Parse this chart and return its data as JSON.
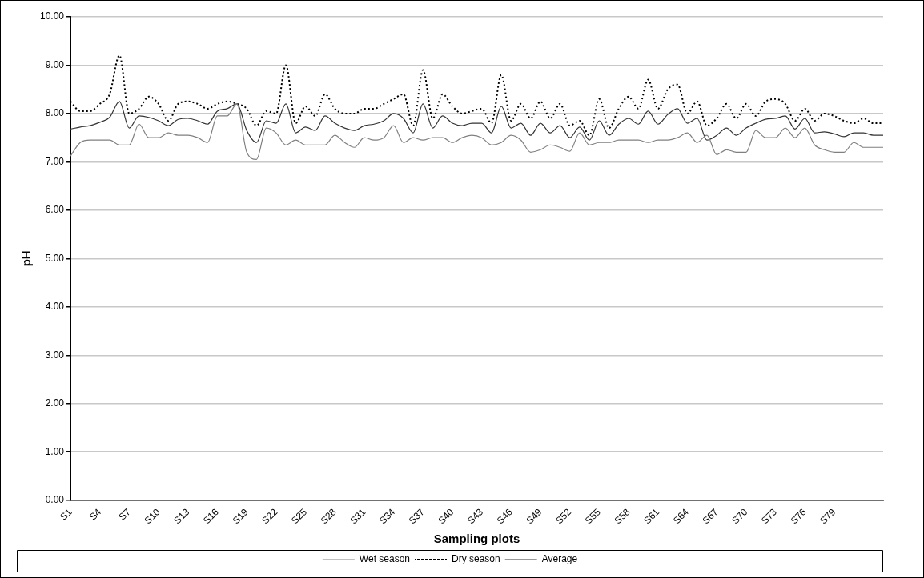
{
  "chart_data": {
    "type": "line",
    "xlabel": "Sampling plots",
    "ylabel": "pH",
    "categories": [
      "S1",
      null,
      null,
      "S4",
      null,
      null,
      "S7",
      null,
      null,
      "S10",
      null,
      null,
      "S13",
      null,
      null,
      "S16",
      null,
      null,
      "S19",
      null,
      null,
      "S22",
      null,
      null,
      "S25",
      null,
      null,
      "S28",
      null,
      null,
      "S31",
      null,
      null,
      "S34",
      null,
      null,
      "S37",
      null,
      null,
      "S40",
      null,
      null,
      "S43",
      null,
      null,
      "S46",
      null,
      null,
      "S49",
      null,
      null,
      "S52",
      null,
      null,
      "S55",
      null,
      null,
      "S58",
      null,
      null,
      "S61",
      null,
      null,
      "S64",
      null,
      null,
      "S67",
      null,
      null,
      "S70",
      null,
      null,
      "S73",
      null,
      null,
      "S76",
      null,
      null,
      "S79",
      null,
      null,
      null,
      null,
      null
    ],
    "series": [
      {
        "name": "Wet season",
        "color": "#808080",
        "line_style": "solid",
        "values": [
          7.12,
          7.4,
          7.45,
          7.45,
          7.45,
          7.35,
          7.35,
          7.78,
          7.5,
          7.5,
          7.6,
          7.55,
          7.55,
          7.5,
          7.4,
          7.95,
          7.95,
          8.2,
          7.2,
          7.05,
          7.7,
          7.6,
          7.35,
          7.45,
          7.35,
          7.35,
          7.35,
          7.55,
          7.4,
          7.3,
          7.5,
          7.45,
          7.5,
          7.75,
          7.4,
          7.5,
          7.45,
          7.5,
          7.5,
          7.4,
          7.5,
          7.55,
          7.5,
          7.35,
          7.4,
          7.55,
          7.45,
          7.2,
          7.25,
          7.35,
          7.3,
          7.22,
          7.6,
          7.35,
          7.4,
          7.4,
          7.45,
          7.45,
          7.45,
          7.4,
          7.45,
          7.45,
          7.5,
          7.6,
          7.4,
          7.55,
          7.15,
          7.25,
          7.2,
          7.2,
          7.65,
          7.5,
          7.5,
          7.7,
          7.5,
          7.7,
          7.35,
          7.25,
          7.2,
          7.2,
          7.4,
          7.3,
          7.3,
          7.3
        ]
      },
      {
        "name": "Dry season",
        "color": "#000000",
        "line_style": "dotted",
        "values": [
          8.25,
          8.05,
          8.05,
          8.2,
          8.4,
          9.2,
          8.0,
          8.1,
          8.35,
          8.2,
          7.85,
          8.2,
          8.25,
          8.2,
          8.1,
          8.2,
          8.25,
          8.2,
          8.1,
          7.75,
          8.05,
          8.0,
          9.0,
          7.8,
          8.15,
          7.95,
          8.4,
          8.1,
          8.0,
          8.0,
          8.1,
          8.1,
          8.2,
          8.3,
          8.4,
          7.75,
          8.9,
          7.9,
          8.4,
          8.15,
          8.0,
          8.05,
          8.1,
          7.8,
          8.8,
          7.85,
          8.2,
          7.9,
          8.25,
          7.9,
          8.2,
          7.75,
          7.85,
          7.55,
          8.3,
          7.7,
          8.1,
          8.35,
          8.1,
          8.7,
          8.1,
          8.5,
          8.6,
          8.0,
          8.25,
          7.75,
          7.9,
          8.2,
          7.9,
          8.2,
          7.95,
          8.25,
          8.3,
          8.2,
          7.85,
          8.1,
          7.85,
          8.0,
          7.95,
          7.85,
          7.8,
          7.9,
          7.8,
          7.8
        ]
      },
      {
        "name": "Average",
        "color": "#333333",
        "line_style": "solid",
        "values": [
          7.68,
          7.72,
          7.75,
          7.82,
          7.92,
          8.25,
          7.7,
          7.95,
          7.92,
          7.85,
          7.75,
          7.88,
          7.9,
          7.85,
          7.78,
          8.05,
          8.1,
          8.2,
          7.65,
          7.4,
          7.85,
          7.8,
          8.2,
          7.6,
          7.72,
          7.65,
          7.95,
          7.8,
          7.7,
          7.65,
          7.75,
          7.78,
          7.85,
          8.0,
          7.9,
          7.6,
          8.2,
          7.7,
          7.95,
          7.8,
          7.75,
          7.8,
          7.8,
          7.6,
          8.15,
          7.7,
          7.8,
          7.55,
          7.8,
          7.6,
          7.75,
          7.5,
          7.72,
          7.45,
          7.85,
          7.55,
          7.78,
          7.9,
          7.78,
          8.05,
          7.78,
          7.98,
          8.1,
          7.8,
          7.9,
          7.45,
          7.55,
          7.7,
          7.55,
          7.7,
          7.8,
          7.88,
          7.9,
          7.95,
          7.68,
          7.9,
          7.6,
          7.62,
          7.58,
          7.52,
          7.6,
          7.6,
          7.55,
          7.55
        ]
      }
    ],
    "ylim": [
      0,
      10
    ],
    "yticks": [
      {
        "value": 0,
        "label": "0.00"
      },
      {
        "value": 1,
        "label": "1.00"
      },
      {
        "value": 2,
        "label": "2.00"
      },
      {
        "value": 3,
        "label": "3.00"
      },
      {
        "value": 4,
        "label": "4.00"
      },
      {
        "value": 5,
        "label": "5.00"
      },
      {
        "value": 6,
        "label": "6.00"
      },
      {
        "value": 7,
        "label": "7.00"
      },
      {
        "value": 8,
        "label": "8.00"
      },
      {
        "value": 9,
        "label": "9.00"
      },
      {
        "value": 10,
        "label": "10.00"
      }
    ],
    "grid": "y",
    "legend": "bottom",
    "marker": "none"
  }
}
